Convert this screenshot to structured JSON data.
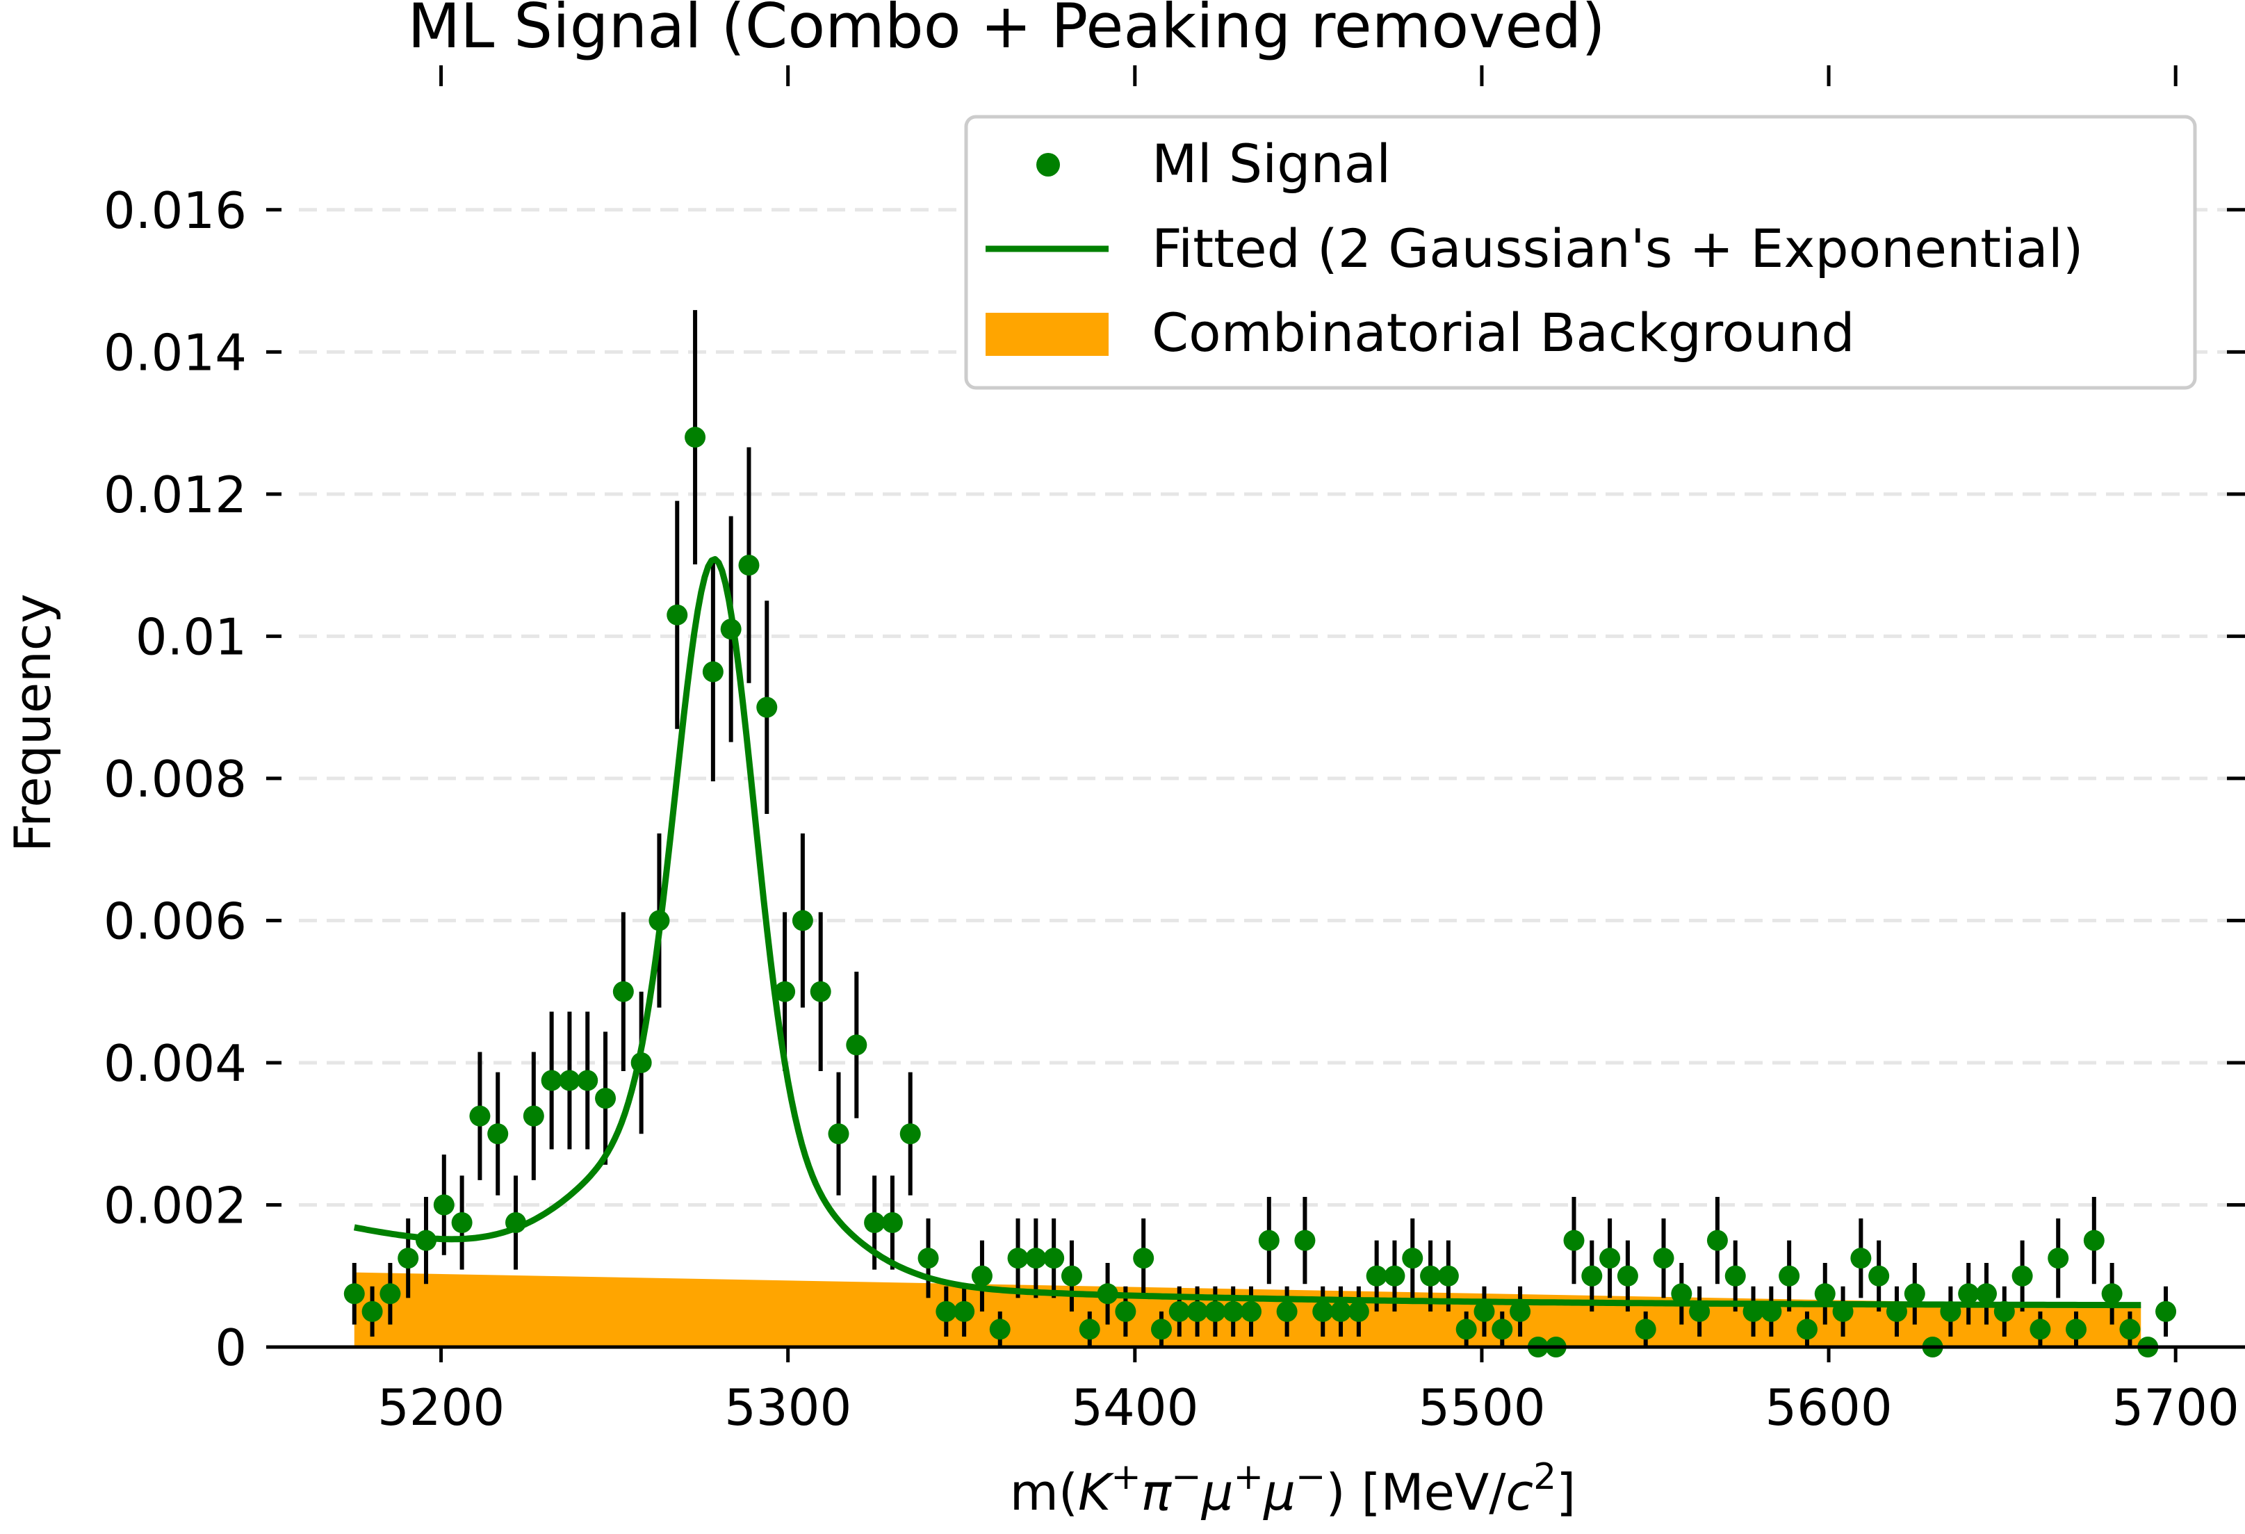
{
  "chart_data": {
    "type": "scatter",
    "title": "ML Signal (Combo + Peaking removed)",
    "xlabel": {
      "prefix": "m(",
      "particles": [
        {
          "symbol": "K",
          "charge": "+"
        },
        {
          "symbol": "π",
          "charge": "−"
        },
        {
          "symbol": "μ",
          "charge": "+"
        },
        {
          "symbol": "μ",
          "charge": "−"
        }
      ],
      "suffix_open": ") [MeV/",
      "unit_c": "c",
      "unit_power": "2",
      "suffix_close": "]"
    },
    "ylabel": "Frequency",
    "xlim": [
      5150,
      5720
    ],
    "ylim": [
      0,
      0.0168
    ],
    "x_ticks": [
      5200,
      5300,
      5400,
      5500,
      5600,
      5700
    ],
    "y_ticks": [
      0,
      0.002,
      0.004,
      0.006,
      0.008,
      0.01,
      0.012,
      0.014,
      0.016
    ],
    "y_tick_labels": [
      "0",
      "0.002",
      "0.004",
      "0.006",
      "0.008",
      "0.01",
      "0.012",
      "0.014",
      "0.016"
    ],
    "grid": "horizontal-dashed",
    "legend_position": "top-right",
    "series": [
      {
        "name": "Ml Signal",
        "kind": "errorbar-points",
        "color": "#008000",
        "errorbar_color": "#000000",
        "bin_step": 5.17,
        "x_start": 5175,
        "x_end": 5690,
        "y": [
          0.00075,
          0.0005,
          0.00075,
          0.00125,
          0.0015,
          0.002,
          0.00175,
          0.00325,
          0.003,
          0.00175,
          0.00325,
          0.00375,
          0.00375,
          0.00375,
          0.0035,
          0.005,
          0.004,
          0.006,
          0.0103,
          0.0128,
          0.0095,
          0.0101,
          0.011,
          0.009,
          0.005,
          0.006,
          0.005,
          0.003,
          0.00425,
          0.00175,
          0.00175,
          0.003,
          0.00125,
          0.0005,
          0.0005,
          0.001,
          0.00025,
          0.00125,
          0.00125,
          0.00125,
          0.001,
          0.00025,
          0.00075,
          0.0005,
          0.00125,
          0.00025,
          0.0005,
          0.0005,
          0.0005,
          0.0005,
          0.0005,
          0.0015,
          0.0005,
          0.0015,
          0.0005,
          0.0005,
          0.0005,
          0.001,
          0.001,
          0.00125,
          0.001,
          0.001,
          0.00025,
          0.0005,
          0.00025,
          0.0005,
          0.0,
          0.0,
          0.0015,
          0.001,
          0.00125,
          0.001,
          0.00025,
          0.00125,
          0.00075,
          0.0005,
          0.0015,
          0.001,
          0.0005,
          0.0005,
          0.001,
          0.00025,
          0.00075,
          0.0005,
          0.00125,
          0.001,
          0.0005,
          0.00075,
          0.0,
          0.0005,
          0.00075,
          0.00075,
          0.0005,
          0.001,
          0.00025,
          0.00125,
          0.00025,
          0.0015,
          0.00075,
          0.00025,
          0.0,
          0.0005
        ]
      },
      {
        "name": "Fitted (2 Gaussian's + Exponential)",
        "kind": "line",
        "color": "#008000",
        "model": {
          "gauss1": {
            "amp": 0.0078,
            "mu": 5279,
            "sigma": 11
          },
          "gauss2": {
            "amp": 0.0023,
            "mu": 5275,
            "sigma": 28
          },
          "tail": {
            "amp": 0.0011,
            "x0": 5175,
            "decay": 110
          },
          "floor": 0.00058
        }
      },
      {
        "name": "Combinatorial Background",
        "kind": "area",
        "color": "#FFA500",
        "x_range": [
          5175,
          5690
        ],
        "y_start": 0.00105,
        "y_end": 0.00058
      }
    ]
  }
}
